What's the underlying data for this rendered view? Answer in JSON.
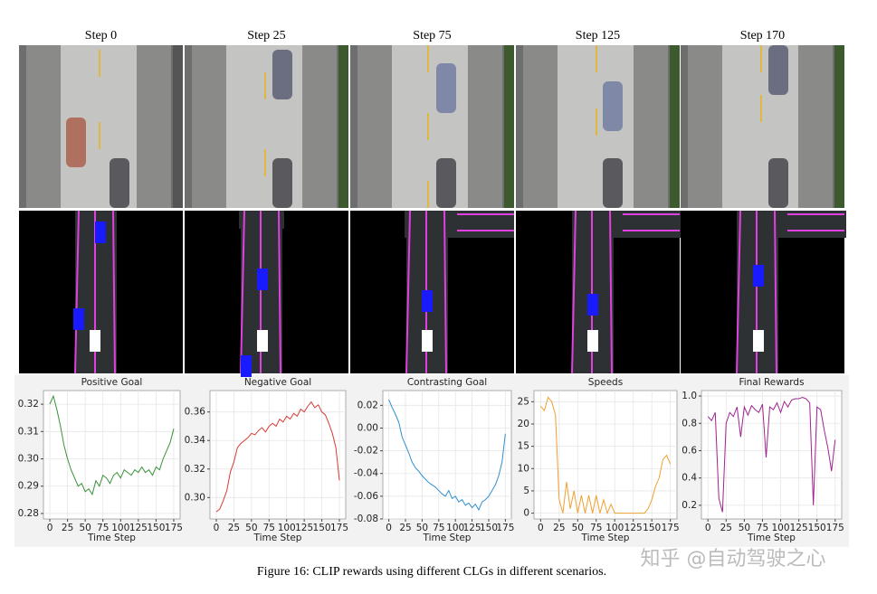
{
  "columns": [
    "Step 0",
    "Step 25",
    "Step 75",
    "Step 125",
    "Step 170"
  ],
  "caption": "Figure 16: CLIP rewards using different CLGs in different scenarios.",
  "watermark": "知乎 @自动驾驶之心",
  "chart_data": [
    {
      "type": "line",
      "title": "Positive Goal",
      "xlabel": "Time Step",
      "color": "#3a923a",
      "grid": true,
      "x": [
        0,
        5,
        10,
        15,
        20,
        25,
        30,
        35,
        40,
        45,
        50,
        55,
        60,
        65,
        70,
        75,
        80,
        85,
        90,
        95,
        100,
        105,
        110,
        115,
        120,
        125,
        130,
        135,
        140,
        145,
        150,
        155,
        160,
        165,
        170,
        175
      ],
      "values": [
        0.32,
        0.323,
        0.318,
        0.312,
        0.305,
        0.3,
        0.296,
        0.293,
        0.29,
        0.291,
        0.288,
        0.289,
        0.287,
        0.292,
        0.29,
        0.294,
        0.293,
        0.291,
        0.294,
        0.295,
        0.293,
        0.296,
        0.295,
        0.294,
        0.296,
        0.295,
        0.297,
        0.295,
        0.296,
        0.294,
        0.297,
        0.296,
        0.3,
        0.303,
        0.306,
        0.311
      ],
      "xlim": [
        -9,
        184
      ],
      "xticks": [
        0,
        25,
        50,
        75,
        100,
        125,
        150,
        175
      ],
      "ylim": [
        0.278,
        0.325
      ],
      "yticks": [
        {
          "value": 0.28,
          "label": "0.28"
        },
        0.29,
        {
          "value": 0.3,
          "label": "0.30"
        },
        0.31,
        0.32
      ]
    },
    {
      "type": "line",
      "title": "Negative Goal",
      "xlabel": "Time Step",
      "color": "#d83b35",
      "grid": true,
      "x": [
        0,
        5,
        10,
        15,
        20,
        25,
        30,
        35,
        40,
        45,
        50,
        55,
        60,
        65,
        70,
        75,
        80,
        85,
        90,
        95,
        100,
        105,
        110,
        115,
        120,
        125,
        130,
        135,
        140,
        145,
        150,
        155,
        160,
        165,
        170,
        175
      ],
      "values": [
        0.29,
        0.292,
        0.298,
        0.305,
        0.318,
        0.325,
        0.335,
        0.338,
        0.34,
        0.342,
        0.345,
        0.344,
        0.347,
        0.349,
        0.346,
        0.35,
        0.352,
        0.35,
        0.355,
        0.353,
        0.357,
        0.355,
        0.359,
        0.357,
        0.362,
        0.36,
        0.364,
        0.367,
        0.363,
        0.365,
        0.36,
        0.358,
        0.352,
        0.345,
        0.335,
        0.312
      ],
      "xlim": [
        -9,
        184
      ],
      "xticks": [
        0,
        25,
        50,
        75,
        100,
        125,
        150,
        175
      ],
      "ylim": [
        0.285,
        0.375
      ],
      "yticks": [
        {
          "value": 0.3,
          "label": "0.30"
        },
        0.32,
        0.34,
        0.36
      ]
    },
    {
      "type": "line",
      "title": "Contrasting Goal",
      "xlabel": "Time Step",
      "color": "#2f8fd0",
      "grid": true,
      "x": [
        0,
        5,
        10,
        15,
        20,
        25,
        30,
        35,
        40,
        45,
        50,
        55,
        60,
        65,
        70,
        75,
        80,
        85,
        90,
        95,
        100,
        105,
        110,
        115,
        120,
        125,
        130,
        135,
        140,
        145,
        150,
        155,
        160,
        165,
        170,
        175
      ],
      "values": [
        0.025,
        0.018,
        0.012,
        0.005,
        -0.008,
        -0.015,
        -0.022,
        -0.03,
        -0.035,
        -0.038,
        -0.042,
        -0.045,
        -0.048,
        -0.05,
        -0.052,
        -0.055,
        -0.058,
        -0.06,
        -0.055,
        -0.062,
        -0.06,
        -0.065,
        -0.063,
        -0.068,
        -0.066,
        -0.07,
        -0.067,
        -0.072,
        -0.065,
        -0.063,
        -0.06,
        -0.055,
        -0.05,
        -0.042,
        -0.03,
        -0.005
      ],
      "xlim": [
        -9,
        184
      ],
      "xticks": [
        0,
        25,
        50,
        75,
        100,
        125,
        150,
        175
      ],
      "ylim": [
        -0.08,
        0.033
      ],
      "yticks": [
        -0.08,
        -0.06,
        -0.04,
        -0.02,
        {
          "value": 0,
          "label": "0.00"
        },
        0.02
      ]
    },
    {
      "type": "line",
      "title": "Speeds",
      "xlabel": "Time Step",
      "color": "#f0a030",
      "grid": true,
      "x": [
        0,
        5,
        10,
        15,
        20,
        25,
        30,
        35,
        40,
        45,
        50,
        55,
        60,
        65,
        70,
        75,
        80,
        85,
        90,
        95,
        100,
        105,
        110,
        115,
        120,
        125,
        130,
        135,
        140,
        145,
        150,
        155,
        160,
        165,
        170,
        175
      ],
      "values": [
        24,
        23,
        26,
        25,
        22,
        3,
        0,
        7,
        1,
        5,
        0,
        4,
        0,
        4,
        0,
        4,
        0,
        3,
        0,
        2,
        0,
        0,
        0,
        0,
        0,
        0,
        0,
        0,
        0,
        1,
        3,
        6,
        8,
        12,
        13,
        11
      ],
      "xlim": [
        -9,
        184
      ],
      "xticks": [
        0,
        25,
        50,
        75,
        100,
        125,
        150,
        175
      ],
      "ylim": [
        -1.3,
        27.5
      ],
      "yticks": [
        0,
        5,
        10,
        15,
        20,
        25
      ]
    },
    {
      "type": "line",
      "title": "Final Rewards",
      "xlabel": "Time Step",
      "color": "#a0238f",
      "grid": true,
      "x": [
        0,
        5,
        10,
        15,
        20,
        25,
        30,
        35,
        40,
        45,
        50,
        55,
        60,
        65,
        70,
        75,
        80,
        85,
        90,
        95,
        100,
        105,
        110,
        115,
        120,
        125,
        130,
        135,
        140,
        145,
        150,
        155,
        160,
        165,
        170,
        175
      ],
      "values": [
        0.85,
        0.82,
        0.88,
        0.25,
        0.15,
        0.8,
        0.88,
        0.85,
        0.92,
        0.7,
        0.92,
        0.86,
        0.93,
        0.9,
        0.88,
        0.94,
        0.55,
        0.92,
        0.9,
        0.95,
        0.88,
        0.96,
        0.92,
        0.97,
        0.98,
        0.98,
        0.99,
        0.98,
        0.95,
        0.2,
        0.92,
        0.9,
        0.75,
        0.62,
        0.45,
        0.68
      ],
      "xlim": [
        -9,
        184
      ],
      "xticks": [
        0,
        25,
        50,
        75,
        100,
        125,
        150,
        175
      ],
      "ylim": [
        0.1,
        1.04
      ],
      "yticks": [
        0.2,
        0.4,
        0.6,
        0.8,
        {
          "value": 1,
          "label": "1.0"
        }
      ]
    }
  ]
}
